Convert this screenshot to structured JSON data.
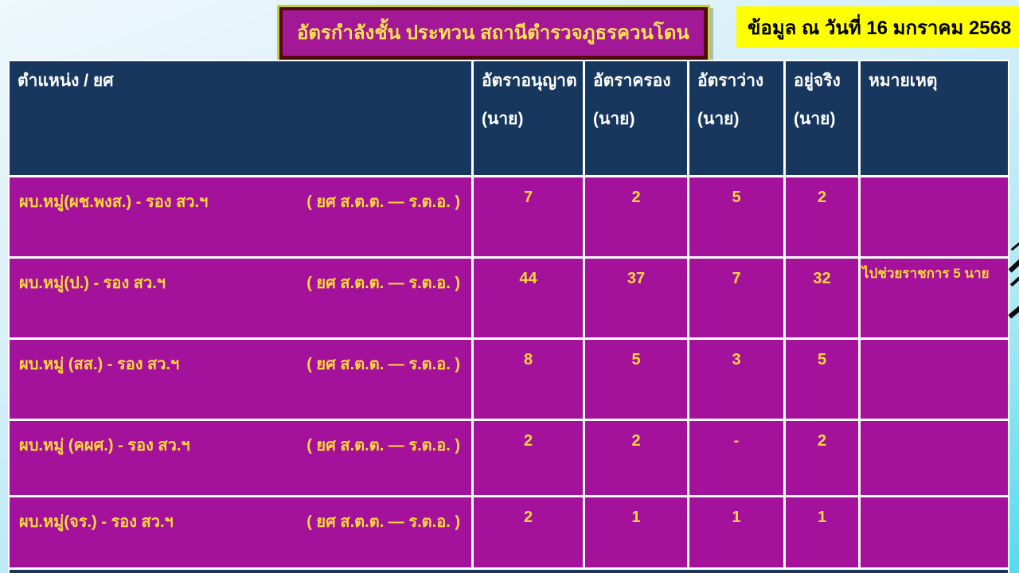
{
  "title": "อัตรกำลังชั้น ประทวน สถานีตำรวจภูธรควนโดน",
  "date_box": "ข้อมูล ณ วันที่ 16 มกราคม 2568",
  "colors": {
    "header_bg": "#17375E",
    "row_bg": "#A4119B",
    "row_text": "#FFD83A",
    "title_bg": "#A21896",
    "title_text": "#FFE34D",
    "date_bg": "#FFFF00",
    "background_top": "#EEF8FD",
    "background_bottom": "#55DBEE"
  },
  "table": {
    "headers": {
      "position": "ตำแหน่ง / ยศ",
      "cols": [
        {
          "line1": "อัตราอนุญาต",
          "line2": "(นาย)"
        },
        {
          "line1": "อัตราครอง",
          "line2": "(นาย)"
        },
        {
          "line1": "อัตราว่าง",
          "line2": "(นาย)"
        },
        {
          "line1": "อยู่จริง",
          "line2": "(นาย)"
        },
        {
          "line1": "หมายเหตุ",
          "line2": ""
        }
      ]
    },
    "rows": [
      {
        "position": "ผบ.หมู่(ผช.พงส.) - รอง สว.ฯ",
        "rank": "( ยศ ส.ต.ต. — ร.ต.อ. )",
        "authorized": "7",
        "occupied": "2",
        "vacant": "5",
        "actual": "2",
        "note": ""
      },
      {
        "position": "ผบ.หมู่(ป.) - รอง สว.ฯ",
        "rank": "( ยศ ส.ต.ต. — ร.ต.อ. )",
        "authorized": "44",
        "occupied": "37",
        "vacant": "7",
        "actual": "32",
        "note": "ไปช่วยราชการ 5 นาย"
      },
      {
        "position": "ผบ.หมู่ (สส.) - รอง สว.ฯ",
        "rank": "( ยศ ส.ต.ต. — ร.ต.อ. )",
        "authorized": "8",
        "occupied": "5",
        "vacant": "3",
        "actual": "5",
        "note": ""
      },
      {
        "position": "ผบ.หมู่ (คผศ.) - รอง สว.ฯ",
        "rank": "( ยศ ส.ต.ต. — ร.ต.อ. )",
        "authorized": "2",
        "occupied": "2",
        "vacant": "-",
        "actual": "2",
        "note": ""
      },
      {
        "position": "ผบ.หมู่(จร.) - รอง สว.ฯ",
        "rank": "( ยศ ส.ต.ต. — ร.ต.อ. )",
        "authorized": "2",
        "occupied": "1",
        "vacant": "1",
        "actual": "1",
        "note": ""
      }
    ]
  }
}
